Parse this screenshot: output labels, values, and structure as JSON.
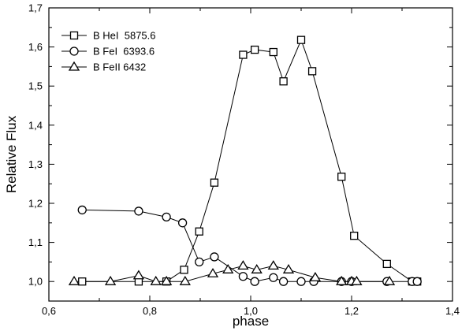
{
  "chart_data": {
    "type": "line",
    "xlabel": "phase",
    "ylabel": "Relative Flux",
    "xlim": [
      0.6,
      1.4
    ],
    "ylim": [
      0.95,
      1.7
    ],
    "xticks": [
      0.6,
      0.8,
      1.0,
      1.2,
      1.4
    ],
    "xtick_labels": [
      "0,6",
      "0,8",
      "1,0",
      "1,2",
      "1,4"
    ],
    "yticks": [
      1.0,
      1.1,
      1.2,
      1.3,
      1.4,
      1.5,
      1.6,
      1.7
    ],
    "ytick_labels": [
      "1,0",
      "1,1",
      "1,2",
      "1,3",
      "1,4",
      "1,5",
      "1,6",
      "1,7"
    ],
    "grid": false,
    "legend_position": "top-left",
    "series": [
      {
        "name": "B HeI  5875.6",
        "marker": "square",
        "x": [
          0.666,
          0.778,
          0.833,
          0.868,
          0.898,
          0.928,
          0.985,
          1.008,
          1.045,
          1.065,
          1.1,
          1.122,
          1.18,
          1.205,
          1.27,
          1.32,
          1.33
        ],
        "y": [
          1.0,
          1.0,
          1.0,
          1.03,
          1.128,
          1.253,
          1.58,
          1.593,
          1.587,
          1.512,
          1.618,
          1.538,
          1.268,
          1.117,
          1.045,
          1.0,
          1.0
        ]
      },
      {
        "name": "B FeI  6393.6",
        "marker": "circle",
        "x": [
          0.666,
          0.778,
          0.833,
          0.865,
          0.898,
          0.928,
          0.985,
          1.008,
          1.045,
          1.065,
          1.1,
          1.125,
          1.18,
          1.2,
          1.27,
          1.32,
          1.33
        ],
        "y": [
          1.183,
          1.18,
          1.165,
          1.15,
          1.05,
          1.063,
          1.013,
          1.0,
          1.01,
          1.0,
          1.0,
          1.0,
          1.0,
          1.0,
          1.0,
          1.0,
          1.0
        ]
      },
      {
        "name": "B FeII 6432",
        "marker": "triangle",
        "x": [
          0.65,
          0.722,
          0.778,
          0.812,
          0.833,
          0.87,
          0.925,
          0.955,
          0.985,
          1.012,
          1.045,
          1.075,
          1.128,
          1.18,
          1.2,
          1.21,
          1.275
        ],
        "y": [
          1.0,
          1.0,
          1.015,
          1.0,
          1.0,
          1.0,
          1.02,
          1.03,
          1.04,
          1.03,
          1.04,
          1.03,
          1.01,
          1.0,
          1.0,
          1.0,
          1.0
        ]
      }
    ]
  }
}
